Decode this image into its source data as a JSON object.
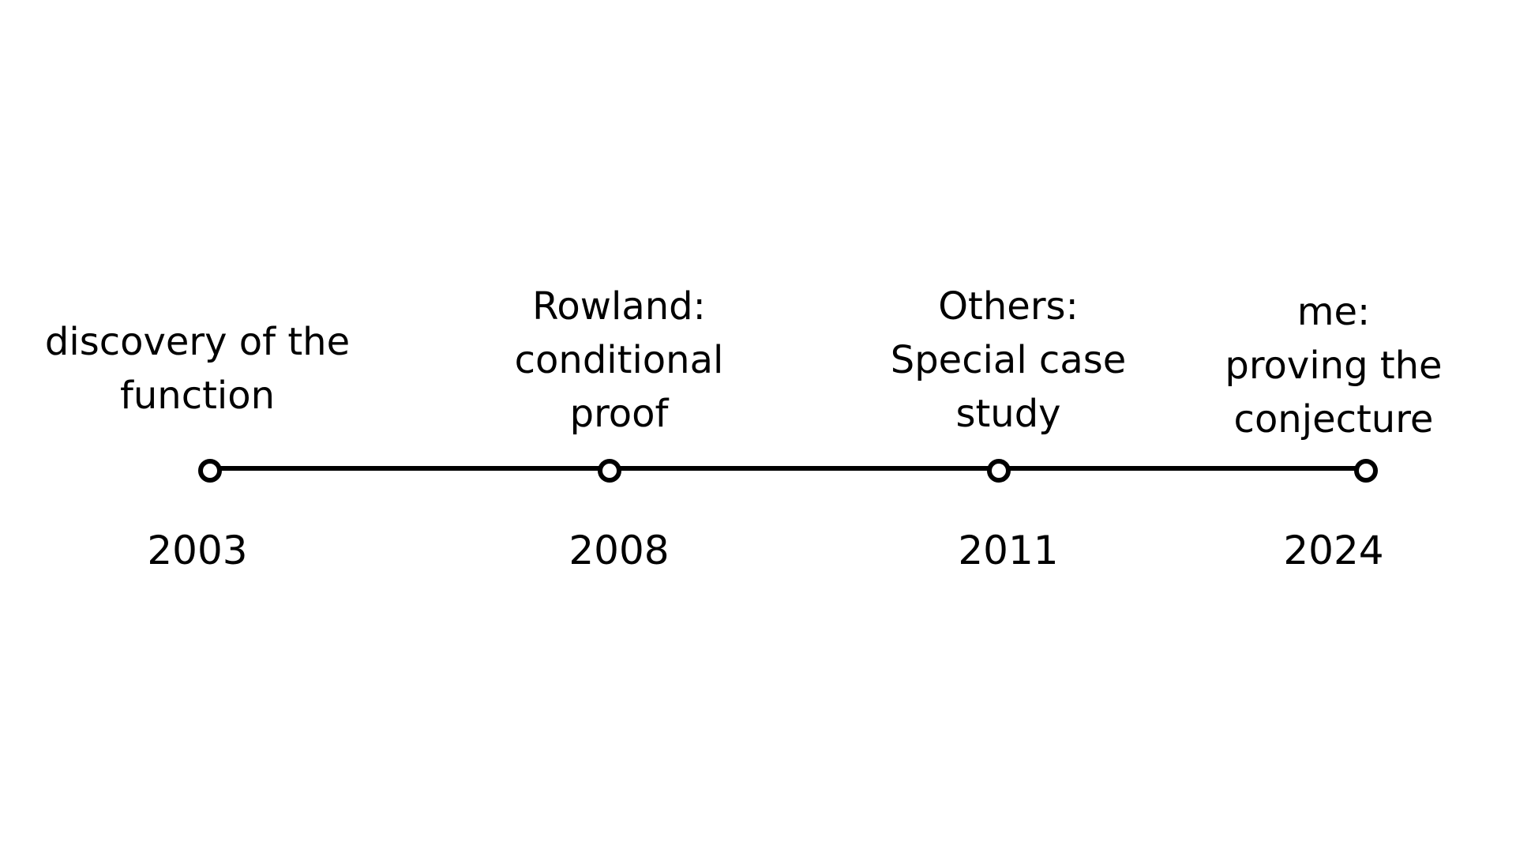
{
  "timeline": {
    "events": [
      {
        "year": "2003",
        "label_lines": [
          "discovery of the",
          "function"
        ]
      },
      {
        "year": "2008",
        "label_lines": [
          "Rowland:",
          "conditional",
          "proof"
        ]
      },
      {
        "year": "2011",
        "label_lines": [
          "Others:",
          "Special case",
          "study"
        ]
      },
      {
        "year": "2024",
        "label_lines": [
          "me:",
          "proving the",
          "conjecture"
        ]
      }
    ],
    "colors": {
      "line": "#000000",
      "text": "#000000",
      "background": "#ffffff"
    }
  }
}
